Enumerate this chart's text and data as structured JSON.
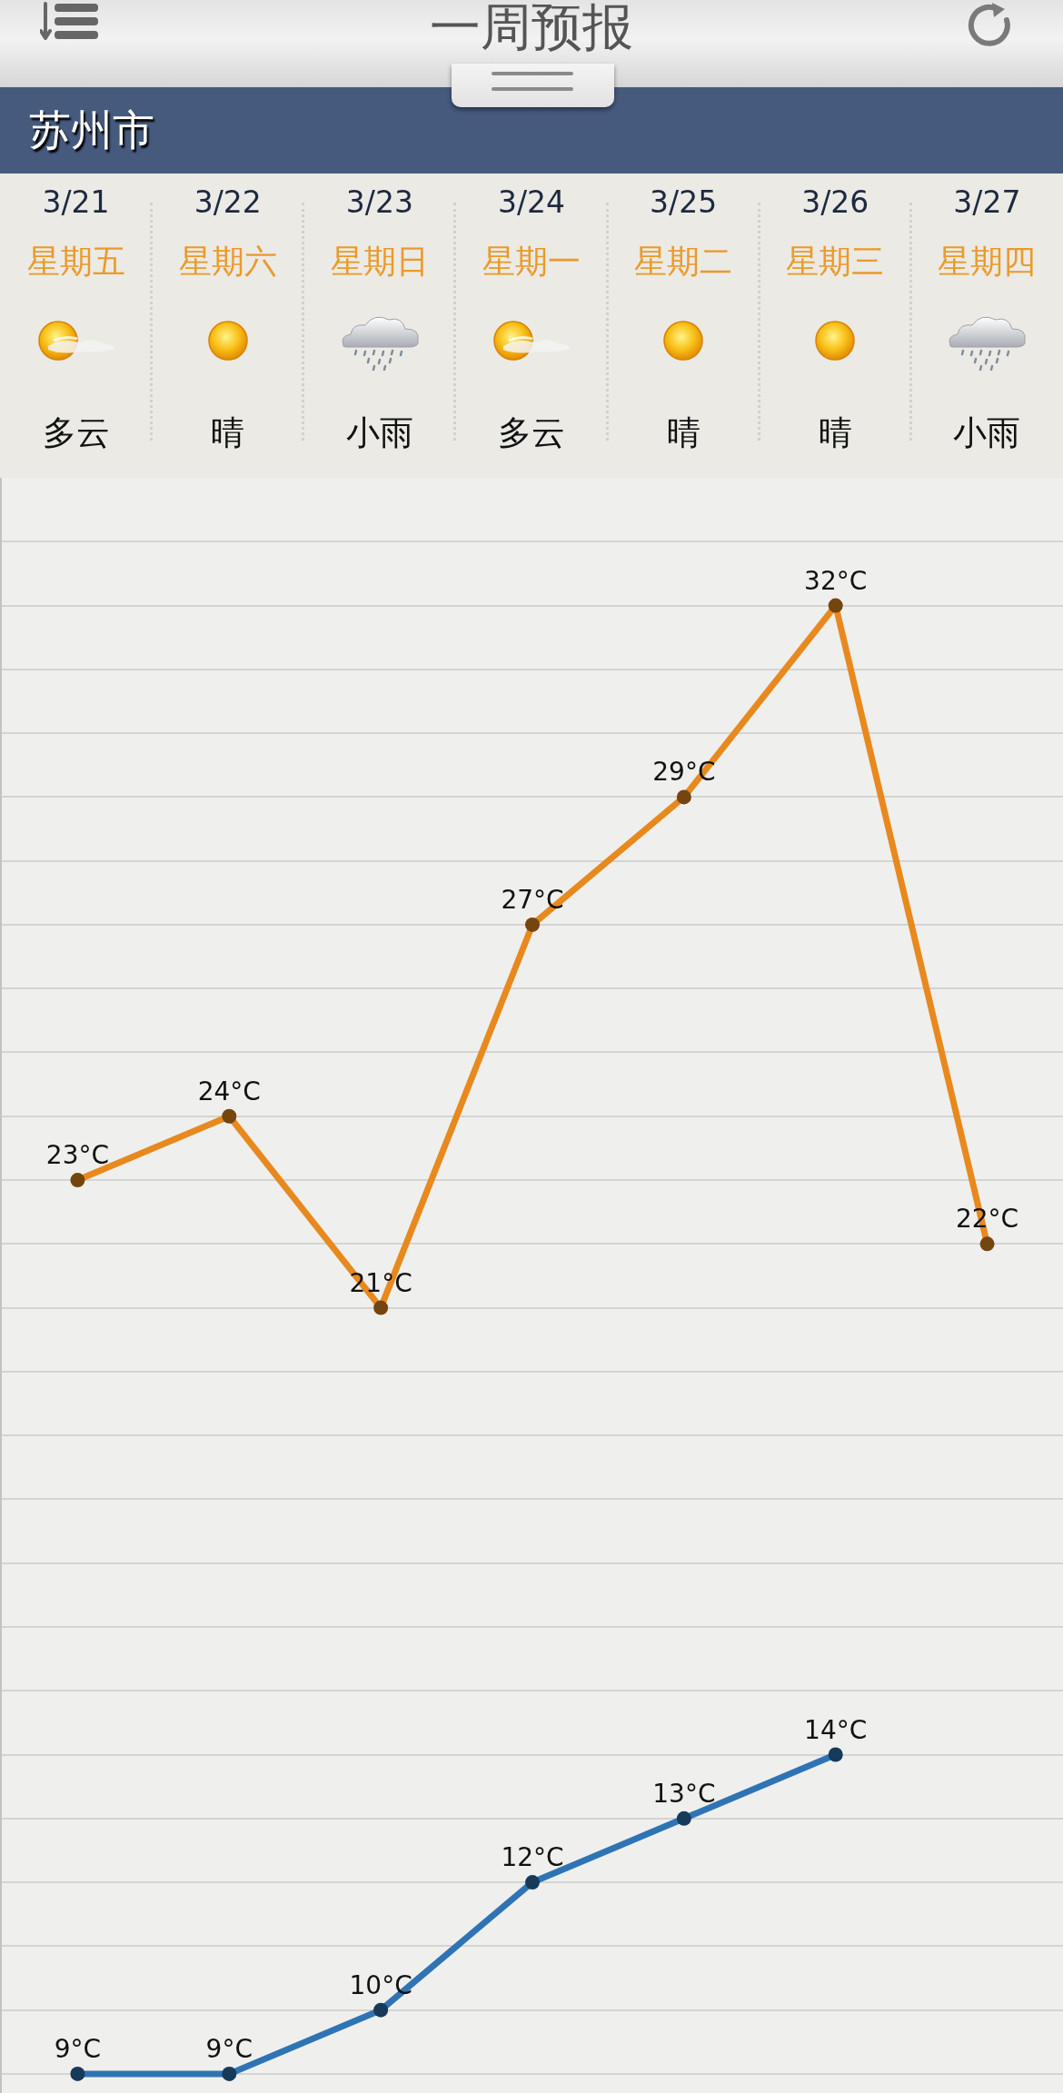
{
  "chart_data": {
    "type": "line",
    "title": "一周预报",
    "subtitle": "苏州市",
    "categories": [
      "3/21",
      "3/22",
      "3/23",
      "3/24",
      "3/25",
      "3/26",
      "3/27"
    ],
    "annotations": [
      "星期五",
      "星期六",
      "星期日",
      "星期一",
      "星期二",
      "星期三",
      "星期四",
      "多云",
      "晴",
      "小雨",
      "多云",
      "晴",
      "晴",
      "小雨"
    ],
    "series": [
      {
        "color": "#e8891e",
        "values": [
          23,
          24,
          21,
          27,
          29,
          32,
          22
        ],
        "value_labels": [
          "23°C",
          "24°C",
          "21°C",
          "27°C",
          "29°C",
          "32°C",
          "22°C"
        ]
      },
      {
        "color": "#2e74b5",
        "values": [
          9,
          9,
          10,
          12,
          13,
          14,
          null
        ],
        "value_labels": [
          "9°C",
          "9°C",
          "10°C",
          "12°C",
          "13°C",
          "14°C",
          null
        ]
      }
    ],
    "ylim": [
      8.7,
      34
    ],
    "yticks": [
      {
        "value": 9,
        "label": null
      },
      {
        "value": 10,
        "label": null
      },
      {
        "value": 11,
        "label": null
      },
      {
        "value": 12,
        "label": null
      },
      {
        "value": 13,
        "label": null
      },
      {
        "value": 14,
        "label": null
      },
      {
        "value": 15,
        "label": null
      },
      {
        "value": 16,
        "label": null
      },
      {
        "value": 17,
        "label": null
      },
      {
        "value": 18,
        "label": null
      },
      {
        "value": 19,
        "label": null
      },
      {
        "value": 20,
        "label": null
      },
      {
        "value": 21,
        "label": null
      },
      {
        "value": 22,
        "label": null
      },
      {
        "value": 23,
        "label": null
      },
      {
        "value": 24,
        "label": null
      },
      {
        "value": 25,
        "label": null
      },
      {
        "value": 26,
        "label": null
      },
      {
        "value": 27,
        "label": null
      },
      {
        "value": 28,
        "label": null
      },
      {
        "value": 29,
        "label": null
      },
      {
        "value": 30,
        "label": null
      },
      {
        "value": 31,
        "label": null
      },
      {
        "value": 32,
        "label": null
      },
      {
        "value": 33,
        "label": null
      }
    ],
    "grid": "y",
    "marker": "circle",
    "tick_labels": "x"
  }
}
